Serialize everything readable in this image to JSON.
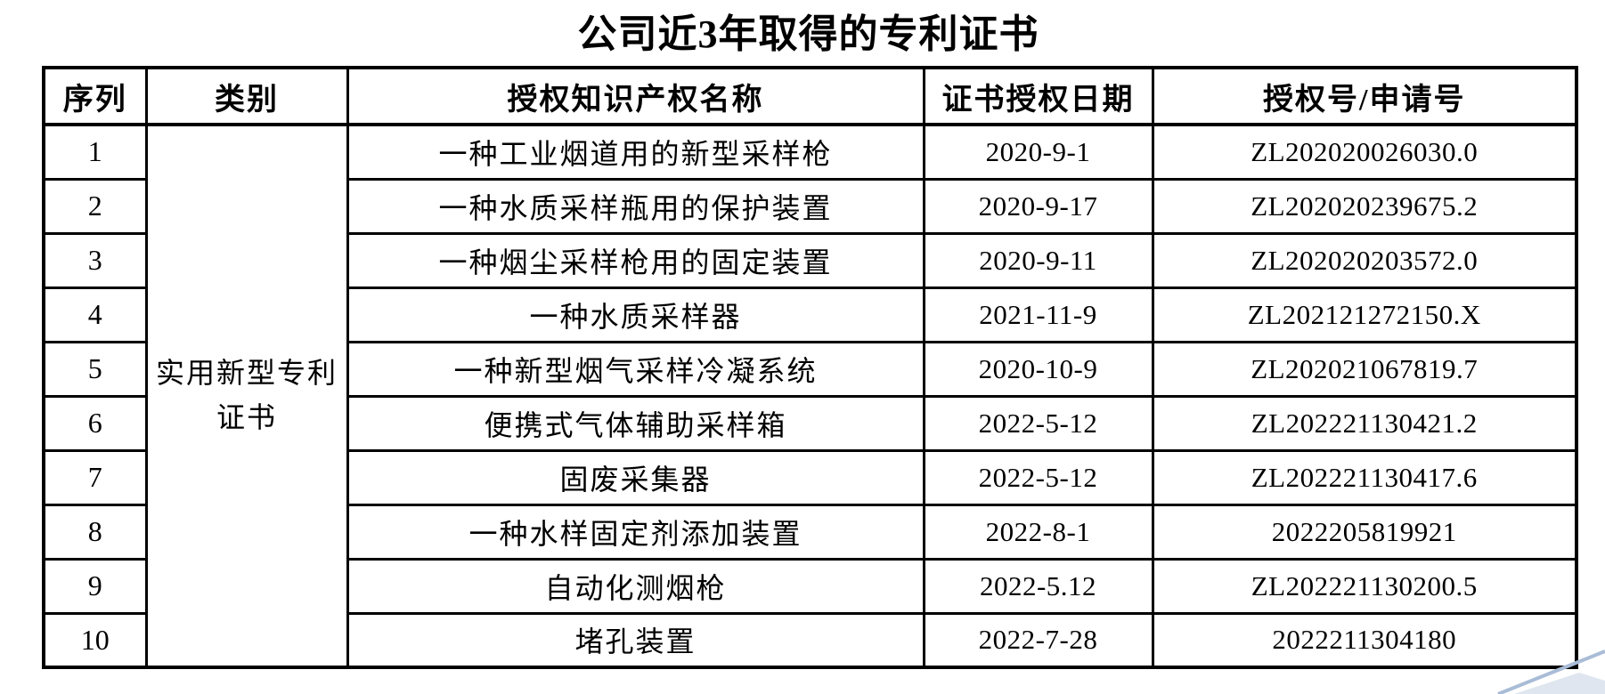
{
  "title": "公司近3年取得的专利证书",
  "table": {
    "headers": {
      "seq": "序列",
      "category": "类别",
      "name": "授权知识产权名称",
      "date": "证书授权日期",
      "number": "授权号/申请号"
    },
    "merged_category": "实用新型专利证书",
    "rows": [
      {
        "seq": "1",
        "name": "一种工业烟道用的新型采样枪",
        "date": "2020-9-1",
        "number": "ZL202020026030.0"
      },
      {
        "seq": "2",
        "name": "一种水质采样瓶用的保护装置",
        "date": "2020-9-17",
        "number": "ZL202020239675.2"
      },
      {
        "seq": "3",
        "name": "一种烟尘采样枪用的固定装置",
        "date": "2020-9-11",
        "number": "ZL202020203572.0"
      },
      {
        "seq": "4",
        "name": "一种水质采样器",
        "date": "2021-11-9",
        "number": "ZL202121272150.X"
      },
      {
        "seq": "5",
        "name": "一种新型烟气采样冷凝系统",
        "date": "2020-10-9",
        "number": "ZL202021067819.7"
      },
      {
        "seq": "6",
        "name": "便携式气体辅助采样箱",
        "date": "2022-5-12",
        "number": "ZL202221130421.2"
      },
      {
        "seq": "7",
        "name": "固废采集器",
        "date": "2022-5-12",
        "number": "ZL202221130417.6"
      },
      {
        "seq": "8",
        "name": "一种水样固定剂添加装置",
        "date": "2022-8-1",
        "number": "2022205819921"
      },
      {
        "seq": "9",
        "name": "自动化测烟枪",
        "date": "2022-5.12",
        "number": "ZL202221130200.5"
      },
      {
        "seq": "10",
        "name": "堵孔装置",
        "date": "2022-7-28",
        "number": "2022211304180"
      }
    ]
  },
  "decoration": {
    "line_color": "#a9bcd7",
    "fill_color": "#dfe6ef"
  }
}
